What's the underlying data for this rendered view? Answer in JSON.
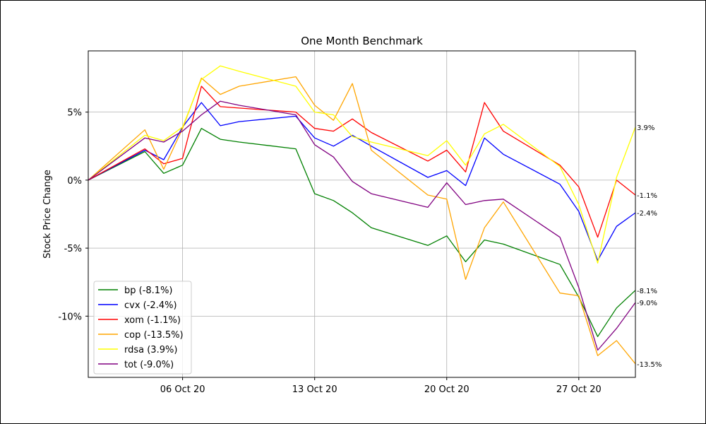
{
  "chart_data": {
    "type": "line",
    "title": "One Month Benchmark",
    "xlabel": "",
    "ylabel": "Stock Price Change",
    "x_range": [
      "2020-10-01",
      "2020-10-30"
    ],
    "ylim": [
      -14.5,
      9.5
    ],
    "x_ticks": [
      {
        "date": "2020-10-06",
        "label": "06 Oct 20"
      },
      {
        "date": "2020-10-13",
        "label": "13 Oct 20"
      },
      {
        "date": "2020-10-20",
        "label": "20 Oct 20"
      },
      {
        "date": "2020-10-27",
        "label": "27 Oct 20"
      }
    ],
    "y_ticks": [
      {
        "value": 5,
        "label": "5%"
      },
      {
        "value": 0,
        "label": "0%"
      },
      {
        "value": -5,
        "label": "-5%"
      },
      {
        "value": -10,
        "label": "-10%"
      }
    ],
    "grid": true,
    "legend_position": "lower-left",
    "x": [
      "2020-10-01",
      "2020-10-04",
      "2020-10-05",
      "2020-10-06",
      "2020-10-07",
      "2020-10-08",
      "2020-10-09",
      "2020-10-12",
      "2020-10-13",
      "2020-10-14",
      "2020-10-15",
      "2020-10-16",
      "2020-10-19",
      "2020-10-20",
      "2020-10-21",
      "2020-10-22",
      "2020-10-23",
      "2020-10-26",
      "2020-10-27",
      "2020-10-28",
      "2020-10-29",
      "2020-10-30"
    ],
    "series": [
      {
        "name": "bp (-8.1%)",
        "color": "#008000",
        "end_label": "-8.1%",
        "values": [
          0,
          2.1,
          0.5,
          1.1,
          3.8,
          3.0,
          2.8,
          2.3,
          -1.0,
          -1.5,
          -2.4,
          -3.5,
          -4.8,
          -4.1,
          -6.0,
          -4.4,
          -4.7,
          -6.2,
          -8.6,
          -11.5,
          -9.4,
          -8.1
        ]
      },
      {
        "name": "cvx (-2.4%)",
        "color": "#0000ff",
        "end_label": "-2.4%",
        "values": [
          0,
          2.2,
          1.5,
          3.9,
          5.7,
          4.0,
          4.3,
          4.7,
          3.1,
          2.5,
          3.3,
          2.5,
          0.2,
          0.7,
          -0.4,
          3.1,
          1.9,
          -0.3,
          -2.3,
          -5.9,
          -3.4,
          -2.4
        ]
      },
      {
        "name": "xom (-1.1%)",
        "color": "#ff0000",
        "end_label": "-1.1%",
        "values": [
          0,
          2.3,
          1.2,
          1.6,
          6.9,
          5.4,
          5.3,
          5.0,
          3.8,
          3.6,
          4.5,
          3.5,
          1.4,
          2.2,
          0.6,
          5.7,
          3.6,
          1.1,
          -0.5,
          -4.2,
          0.0,
          -1.1
        ]
      },
      {
        "name": "cop (-13.5%)",
        "color": "#ffa500",
        "end_label": "-13.5%",
        "values": [
          0,
          3.7,
          0.8,
          3.8,
          7.5,
          6.3,
          6.9,
          7.6,
          5.5,
          4.4,
          7.1,
          2.2,
          -1.1,
          -1.4,
          -7.3,
          -3.5,
          -1.6,
          -8.3,
          -8.5,
          -12.9,
          -11.8,
          -13.5
        ]
      },
      {
        "name": "rdsa (3.9%)",
        "color": "#ffff00",
        "end_label": "3.9%",
        "values": [
          0,
          3.3,
          2.9,
          3.9,
          7.4,
          8.4,
          8.0,
          6.9,
          5.0,
          4.8,
          3.2,
          2.8,
          1.8,
          2.9,
          1.1,
          3.4,
          4.1,
          1.0,
          -1.8,
          -6.1,
          0.2,
          3.9
        ]
      },
      {
        "name": "tot (-9.0%)",
        "color": "#800080",
        "end_label": "-9.0%",
        "values": [
          0,
          3.1,
          2.8,
          3.6,
          4.8,
          5.8,
          5.5,
          4.8,
          2.6,
          1.7,
          -0.1,
          -1.0,
          -2.0,
          -0.2,
          -1.8,
          -1.5,
          -1.4,
          -4.2,
          -7.9,
          -12.5,
          -10.9,
          -9.0
        ]
      }
    ]
  }
}
